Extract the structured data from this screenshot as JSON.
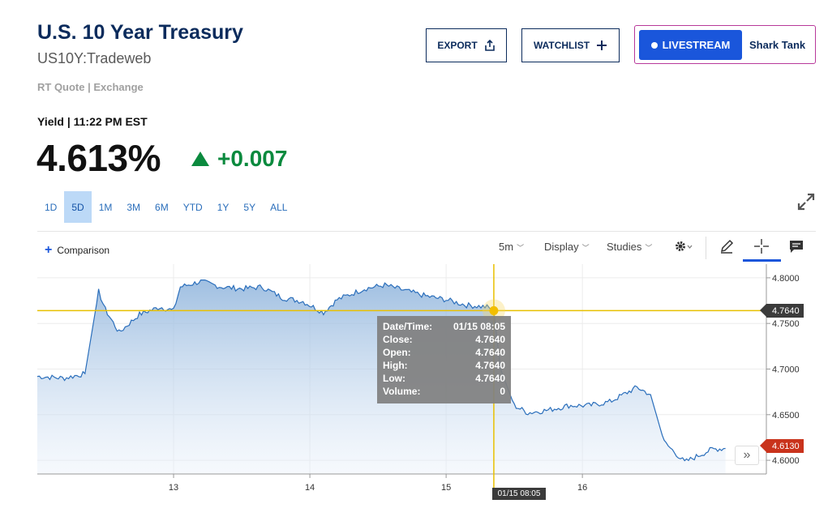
{
  "header": {
    "title": "U.S. 10 Year Treasury",
    "symbol": "US10Y:Tradeweb",
    "quote_source": "RT Quote | Exchange"
  },
  "actions": {
    "export_label": "EXPORT",
    "watchlist_label": "WATCHLIST",
    "livestream_label": "LIVESTREAM",
    "show_name": "Shark Tank"
  },
  "quote": {
    "yield_label": "Yield | 11:22 PM EST",
    "price": "4.613%",
    "change": "+0.007",
    "direction": "up",
    "change_color": "#0b8a3e"
  },
  "ranges": [
    {
      "label": "1D",
      "active": false
    },
    {
      "label": "5D",
      "active": true
    },
    {
      "label": "1M",
      "active": false
    },
    {
      "label": "3M",
      "active": false
    },
    {
      "label": "6M",
      "active": false
    },
    {
      "label": "YTD",
      "active": false
    },
    {
      "label": "1Y",
      "active": false
    },
    {
      "label": "5Y",
      "active": false
    },
    {
      "label": "ALL",
      "active": false
    }
  ],
  "toolbar": {
    "comparison_label": "Comparison",
    "interval_label": "5m",
    "display_label": "Display",
    "studies_label": "Studies",
    "icons": [
      "gear-icon",
      "pencil-icon",
      "crosshair-icon",
      "comment-icon"
    ]
  },
  "tooltip": {
    "rows": [
      {
        "k": "Date/Time:",
        "v": "01/15 08:05"
      },
      {
        "k": "Close:",
        "v": "4.7640"
      },
      {
        "k": "Open:",
        "v": "4.7640"
      },
      {
        "k": "High:",
        "v": "4.7640"
      },
      {
        "k": "Low:",
        "v": "4.7640"
      },
      {
        "k": "Volume:",
        "v": "0"
      }
    ]
  },
  "crosshair": {
    "value_label": "4.7640",
    "time_label": "01/15 08:05"
  },
  "last_price_label": "4.6130",
  "colors": {
    "accent": "#1a56db",
    "line": "#2a6ebb",
    "crosshair": "#e8c000",
    "last_tag": "#c9331c"
  },
  "chart_data": {
    "type": "area",
    "ylim": [
      4.585,
      4.815
    ],
    "y_ticks": [
      "4.8000",
      "4.7500",
      "4.7000",
      "4.6500",
      "4.6000"
    ],
    "x_ticks": [
      "13",
      "14",
      "15",
      "16"
    ],
    "series": [
      {
        "values": [
          [
            12.0,
            4.692
          ],
          [
            12.2,
            4.69
          ],
          [
            12.35,
            4.695
          ],
          [
            12.45,
            4.785
          ],
          [
            12.5,
            4.765
          ],
          [
            12.6,
            4.74
          ],
          [
            12.75,
            4.76
          ],
          [
            12.9,
            4.768
          ],
          [
            13.0,
            4.764
          ],
          [
            13.05,
            4.79
          ],
          [
            13.2,
            4.796
          ],
          [
            13.35,
            4.79
          ],
          [
            13.5,
            4.788
          ],
          [
            13.65,
            4.79
          ],
          [
            13.8,
            4.778
          ],
          [
            13.95,
            4.774
          ],
          [
            14.1,
            4.762
          ],
          [
            14.2,
            4.776
          ],
          [
            14.4,
            4.788
          ],
          [
            14.55,
            4.792
          ],
          [
            14.7,
            4.786
          ],
          [
            14.85,
            4.78
          ],
          [
            15.0,
            4.776
          ],
          [
            15.15,
            4.77
          ],
          [
            15.3,
            4.768
          ],
          [
            15.35,
            4.764
          ],
          [
            15.4,
            4.7
          ],
          [
            15.5,
            4.66
          ],
          [
            15.6,
            4.652
          ],
          [
            15.75,
            4.655
          ],
          [
            15.9,
            4.66
          ],
          [
            16.05,
            4.66
          ],
          [
            16.2,
            4.664
          ],
          [
            16.3,
            4.672
          ],
          [
            16.4,
            4.68
          ],
          [
            16.5,
            4.672
          ],
          [
            16.6,
            4.62
          ],
          [
            16.75,
            4.598
          ],
          [
            16.85,
            4.605
          ],
          [
            16.95,
            4.612
          ],
          [
            17.05,
            4.613
          ]
        ]
      }
    ]
  }
}
